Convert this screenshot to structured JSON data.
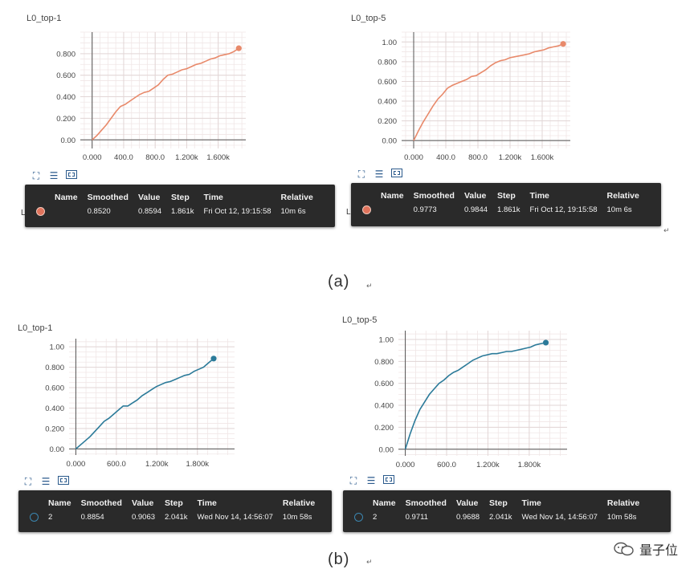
{
  "caption_a": "(a)",
  "caption_b": "(b)",
  "return_mark": "↵",
  "watermark_text": "量子位",
  "tooltip_headers": [
    "Name",
    "Smoothed",
    "Value",
    "Step",
    "Time",
    "Relative"
  ],
  "colors": {
    "orange": "#e8896a",
    "orange_dot": "#e0735c",
    "blue": "#2b7a99",
    "blue_dot": "#3b86b0"
  },
  "panels": [
    {
      "id": "a-top1",
      "edge_char": "L",
      "row": {
        "name": "",
        "smoothed": "0.8520",
        "value": "0.8594",
        "step": "1.861k",
        "time": "Fri Oct 12, 19:15:58",
        "relative": "10m 6s"
      }
    },
    {
      "id": "a-top5",
      "edge_char": "L",
      "row": {
        "name": "",
        "smoothed": "0.9773",
        "value": "0.9844",
        "step": "1.861k",
        "time": "Fri Oct 12, 19:15:58",
        "relative": "10m 6s"
      }
    },
    {
      "id": "b-top1",
      "edge_char": "",
      "row": {
        "name": "2",
        "smoothed": "0.8854",
        "value": "0.9063",
        "step": "2.041k",
        "time": "Wed Nov 14, 14:56:07",
        "relative": "10m 58s"
      }
    },
    {
      "id": "b-top5",
      "edge_char": "",
      "row": {
        "name": "2",
        "smoothed": "0.9711",
        "value": "0.9688",
        "step": "2.041k",
        "time": "Wed Nov 14, 14:56:07",
        "relative": "10m 58s"
      }
    }
  ],
  "chart_data": [
    {
      "type": "line",
      "title": "L0_top-1",
      "xlabel": "",
      "ylabel": "",
      "xlim": [
        -150,
        1950
      ],
      "ylim": [
        -0.08,
        1.0
      ],
      "x_ticks": [
        0,
        400,
        800,
        1200,
        1600
      ],
      "x_tick_labels": [
        "0.000",
        "400.0",
        "800.0",
        "1.200k",
        "1.600k"
      ],
      "y_ticks": [
        0,
        0.2,
        0.4,
        0.6,
        0.8
      ],
      "y_tick_labels": [
        "0.00",
        "0.200",
        "0.400",
        "0.600",
        "0.800"
      ],
      "grid": true,
      "color": "#e8896a",
      "series": [
        {
          "x": [
            0,
            60,
            120,
            180,
            240,
            300,
            360,
            420,
            480,
            540,
            600,
            660,
            720,
            780,
            840,
            900,
            960,
            1020,
            1080,
            1140,
            1200,
            1260,
            1320,
            1380,
            1440,
            1500,
            1560,
            1620,
            1680,
            1740,
            1800,
            1861
          ],
          "y": [
            0.0,
            0.04,
            0.09,
            0.14,
            0.2,
            0.26,
            0.31,
            0.33,
            0.36,
            0.39,
            0.42,
            0.44,
            0.45,
            0.48,
            0.51,
            0.56,
            0.6,
            0.61,
            0.63,
            0.65,
            0.66,
            0.68,
            0.7,
            0.71,
            0.73,
            0.75,
            0.76,
            0.78,
            0.79,
            0.8,
            0.82,
            0.85
          ]
        }
      ]
    },
    {
      "type": "line",
      "title": "L0_top-5",
      "xlabel": "",
      "ylabel": "",
      "xlim": [
        -150,
        1950
      ],
      "ylim": [
        -0.08,
        1.1
      ],
      "x_ticks": [
        0,
        400,
        800,
        1200,
        1600
      ],
      "x_tick_labels": [
        "0.000",
        "400.0",
        "800.0",
        "1.200k",
        "1.600k"
      ],
      "y_ticks": [
        0,
        0.2,
        0.4,
        0.6,
        0.8,
        1.0
      ],
      "y_tick_labels": [
        "0.00",
        "0.200",
        "0.400",
        "0.600",
        "0.800",
        "1.00"
      ],
      "grid": true,
      "color": "#e8896a",
      "series": [
        {
          "x": [
            0,
            60,
            120,
            180,
            240,
            300,
            360,
            420,
            480,
            540,
            600,
            660,
            720,
            780,
            840,
            900,
            960,
            1020,
            1080,
            1140,
            1200,
            1260,
            1320,
            1380,
            1440,
            1500,
            1560,
            1620,
            1680,
            1740,
            1800,
            1861
          ],
          "y": [
            0.0,
            0.1,
            0.19,
            0.27,
            0.35,
            0.42,
            0.47,
            0.53,
            0.56,
            0.58,
            0.6,
            0.62,
            0.65,
            0.66,
            0.69,
            0.72,
            0.76,
            0.79,
            0.81,
            0.82,
            0.84,
            0.85,
            0.86,
            0.87,
            0.88,
            0.9,
            0.91,
            0.92,
            0.94,
            0.95,
            0.96,
            0.98
          ]
        }
      ]
    },
    {
      "type": "line",
      "title": "L0_top-1",
      "xlabel": "",
      "ylabel": "",
      "xlim": [
        -100,
        2350
      ],
      "ylim": [
        -0.06,
        1.08
      ],
      "x_ticks": [
        0,
        600,
        1200,
        1800
      ],
      "x_tick_labels": [
        "0.000",
        "600.0",
        "1.200k",
        "1.800k"
      ],
      "y_ticks": [
        0,
        0.2,
        0.4,
        0.6,
        0.8,
        1.0
      ],
      "y_tick_labels": [
        "0.00",
        "0.200",
        "0.400",
        "0.600",
        "0.800",
        "1.00"
      ],
      "grid": true,
      "color": "#2b7a99",
      "series": [
        {
          "x": [
            0,
            70,
            140,
            210,
            280,
            350,
            420,
            490,
            560,
            630,
            700,
            770,
            840,
            910,
            980,
            1050,
            1120,
            1190,
            1260,
            1330,
            1400,
            1470,
            1540,
            1610,
            1680,
            1750,
            1820,
            1890,
            1960,
            2041
          ],
          "y": [
            0.0,
            0.04,
            0.08,
            0.12,
            0.17,
            0.22,
            0.27,
            0.3,
            0.34,
            0.38,
            0.42,
            0.42,
            0.45,
            0.48,
            0.52,
            0.55,
            0.58,
            0.61,
            0.63,
            0.65,
            0.66,
            0.68,
            0.7,
            0.72,
            0.73,
            0.76,
            0.78,
            0.8,
            0.84,
            0.885
          ]
        }
      ]
    },
    {
      "type": "line",
      "title": "L0_top-5",
      "xlabel": "",
      "ylabel": "",
      "xlim": [
        -100,
        2350
      ],
      "ylim": [
        -0.06,
        1.08
      ],
      "x_ticks": [
        0,
        600,
        1200,
        1800
      ],
      "x_tick_labels": [
        "0.000",
        "600.0",
        "1.200k",
        "1.800k"
      ],
      "y_ticks": [
        0,
        0.2,
        0.4,
        0.6,
        0.8,
        1.0
      ],
      "y_tick_labels": [
        "0.00",
        "0.200",
        "0.400",
        "0.600",
        "0.800",
        "1.00"
      ],
      "grid": true,
      "color": "#2b7a99",
      "series": [
        {
          "x": [
            0,
            70,
            140,
            210,
            280,
            350,
            420,
            490,
            560,
            630,
            700,
            770,
            840,
            910,
            980,
            1050,
            1120,
            1190,
            1260,
            1330,
            1400,
            1470,
            1540,
            1610,
            1680,
            1750,
            1820,
            1890,
            1960,
            2041
          ],
          "y": [
            0.0,
            0.14,
            0.26,
            0.36,
            0.43,
            0.5,
            0.55,
            0.6,
            0.63,
            0.67,
            0.7,
            0.72,
            0.75,
            0.78,
            0.81,
            0.83,
            0.85,
            0.86,
            0.87,
            0.87,
            0.88,
            0.89,
            0.89,
            0.9,
            0.91,
            0.92,
            0.93,
            0.95,
            0.96,
            0.971
          ]
        }
      ]
    }
  ]
}
